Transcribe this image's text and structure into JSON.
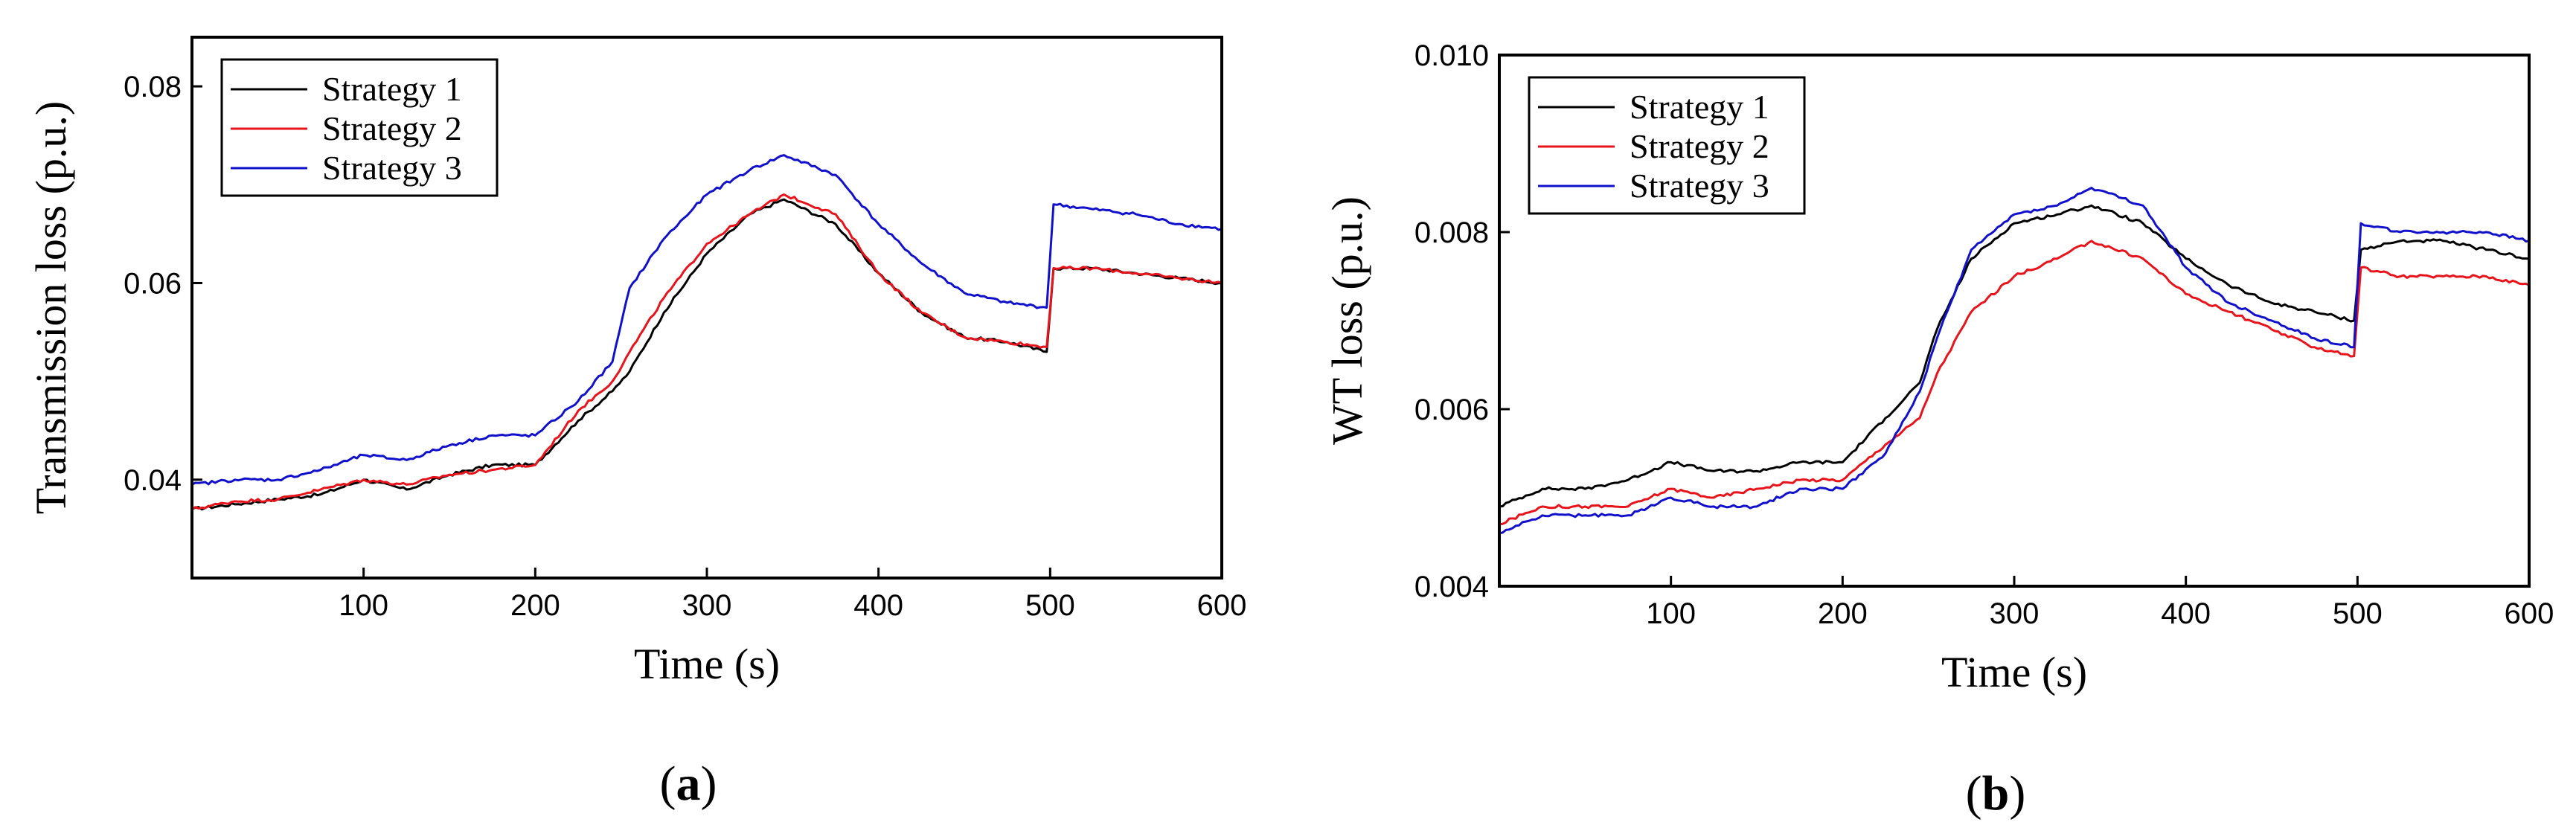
{
  "chart_data": [
    {
      "type": "line",
      "panel_label": "a",
      "xlabel": "Time (s)",
      "ylabel": "Transmission loss (p.u.)",
      "xlim": [
        0,
        600
      ],
      "ylim": [
        0.03,
        0.085
      ],
      "xticks": [
        "100",
        "200",
        "300",
        "400",
        "500",
        "600"
      ],
      "xtick_values": [
        100,
        200,
        300,
        400,
        500,
        600
      ],
      "yticks": [
        "0.04",
        "0.06",
        "0.08"
      ],
      "ytick_values": [
        0.04,
        0.06,
        0.08
      ],
      "legend_position": "top-left",
      "x": [
        0,
        25,
        50,
        75,
        100,
        125,
        150,
        175,
        200,
        225,
        245,
        255,
        275,
        300,
        325,
        345,
        375,
        400,
        425,
        450,
        475,
        498,
        502,
        525,
        550,
        575,
        600
      ],
      "series": [
        {
          "name": "Strategy 1",
          "color": "#000000",
          "values": [
            0.037,
            0.0375,
            0.038,
            0.0385,
            0.04,
            0.039,
            0.0405,
            0.0415,
            0.0415,
            0.046,
            0.049,
            0.051,
            0.057,
            0.063,
            0.067,
            0.0685,
            0.066,
            0.061,
            0.057,
            0.0545,
            0.054,
            0.053,
            0.0615,
            0.0615,
            0.061,
            0.0605,
            0.06
          ]
        },
        {
          "name": "Strategy 2",
          "color": "#e8141b",
          "values": [
            0.037,
            0.0378,
            0.038,
            0.039,
            0.04,
            0.0395,
            0.0405,
            0.041,
            0.0415,
            0.047,
            0.05,
            0.053,
            0.0585,
            0.064,
            0.067,
            0.069,
            0.067,
            0.061,
            0.057,
            0.0545,
            0.054,
            0.0535,
            0.0615,
            0.0615,
            0.061,
            0.0605,
            0.06
          ]
        },
        {
          "name": "Strategy 3",
          "color": "#1111cc",
          "values": [
            0.0395,
            0.04,
            0.04,
            0.041,
            0.0425,
            0.042,
            0.0435,
            0.0445,
            0.0445,
            0.048,
            0.052,
            0.0595,
            0.0645,
            0.069,
            0.0715,
            0.073,
            0.071,
            0.066,
            0.062,
            0.059,
            0.058,
            0.0575,
            0.068,
            0.0675,
            0.067,
            0.066,
            0.0655
          ]
        }
      ]
    },
    {
      "type": "line",
      "panel_label": "b",
      "xlabel": "Time (s)",
      "ylabel": "WT loss (p.u.)",
      "xlim": [
        0,
        600
      ],
      "ylim": [
        0.004,
        0.01
      ],
      "xticks": [
        "100",
        "200",
        "300",
        "400",
        "500",
        "600"
      ],
      "xtick_values": [
        100,
        200,
        300,
        400,
        500,
        600
      ],
      "yticks": [
        "0.004",
        "0.006",
        "0.008",
        "0.010"
      ],
      "ytick_values": [
        0.004,
        0.006,
        0.008,
        0.01
      ],
      "legend_position": "top-left",
      "x": [
        0,
        25,
        50,
        75,
        100,
        125,
        150,
        175,
        200,
        225,
        245,
        255,
        275,
        300,
        325,
        345,
        375,
        400,
        425,
        450,
        475,
        498,
        502,
        525,
        550,
        575,
        600
      ],
      "series": [
        {
          "name": "Strategy 1",
          "color": "#000000",
          "values": [
            0.0049,
            0.0051,
            0.0051,
            0.0052,
            0.0054,
            0.0053,
            0.0053,
            0.0054,
            0.0054,
            0.0059,
            0.0063,
            0.0069,
            0.0077,
            0.0081,
            0.0082,
            0.0083,
            0.0081,
            0.0077,
            0.0074,
            0.0072,
            0.0071,
            0.007,
            0.0078,
            0.0079,
            0.0079,
            0.0078,
            0.0077
          ]
        },
        {
          "name": "Strategy 2",
          "color": "#e8141b",
          "values": [
            0.0047,
            0.0049,
            0.0049,
            0.0049,
            0.0051,
            0.005,
            0.0051,
            0.0052,
            0.0052,
            0.0056,
            0.0059,
            0.0064,
            0.0071,
            0.0075,
            0.0077,
            0.0079,
            0.0077,
            0.0073,
            0.0071,
            0.0069,
            0.0067,
            0.0066,
            0.0076,
            0.0075,
            0.0075,
            0.0075,
            0.0074
          ]
        },
        {
          "name": "Strategy 3",
          "color": "#1111cc",
          "values": [
            0.0046,
            0.0048,
            0.0048,
            0.0048,
            0.005,
            0.0049,
            0.0049,
            0.0051,
            0.0051,
            0.0055,
            0.0062,
            0.0068,
            0.0078,
            0.0082,
            0.0083,
            0.0085,
            0.0083,
            0.0076,
            0.0072,
            0.007,
            0.0068,
            0.0067,
            0.0081,
            0.008,
            0.008,
            0.008,
            0.0079
          ]
        }
      ]
    }
  ]
}
